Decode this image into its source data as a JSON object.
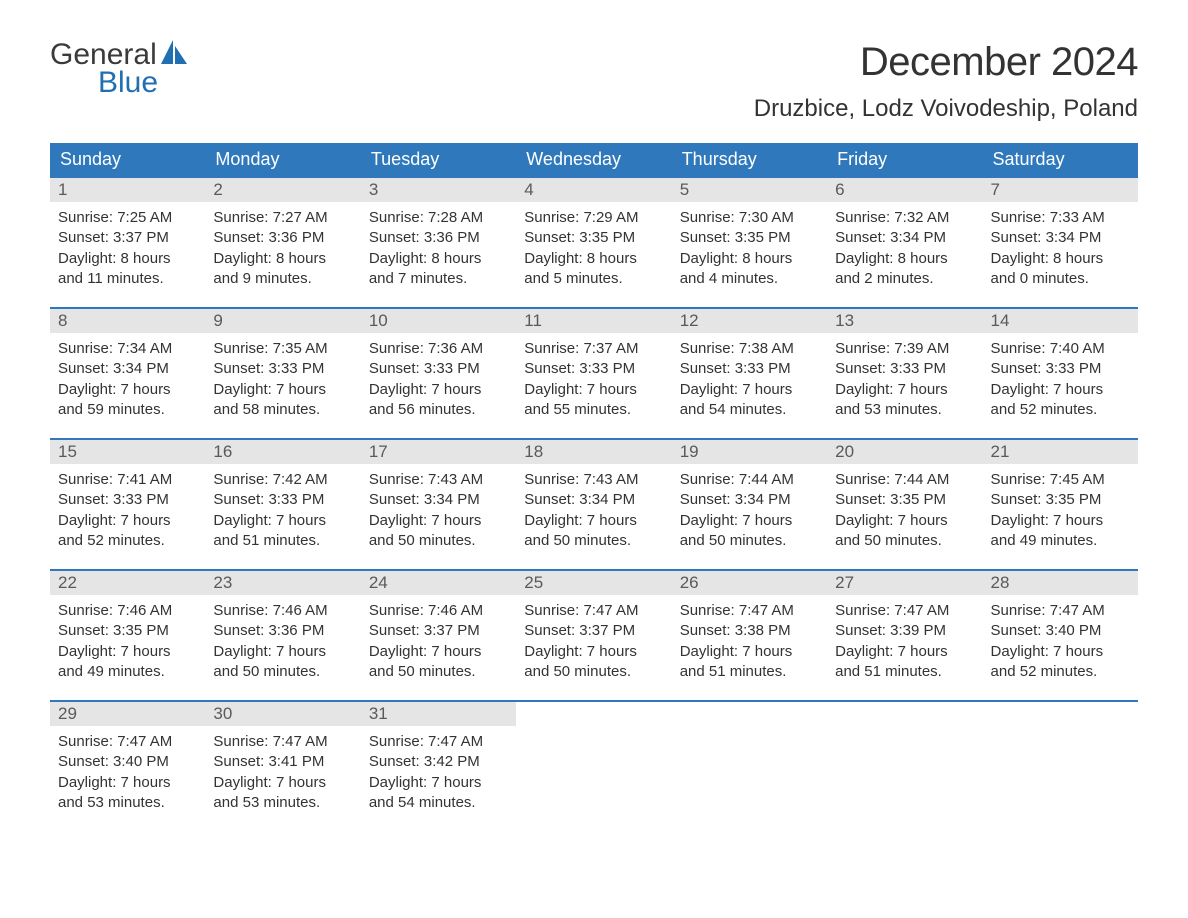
{
  "logo": {
    "text_top": "General",
    "text_bottom": "Blue",
    "icon_color": "#1f6fb2",
    "text_top_color": "#3a3a3a",
    "text_bottom_color": "#1f6fb2"
  },
  "title": "December 2024",
  "location": "Druzbice, Lodz Voivodeship, Poland",
  "colors": {
    "header_bg": "#2f78bc",
    "header_text": "#ffffff",
    "day_number_bg": "#e5e5e5",
    "day_number_text": "#5a5a5a",
    "border": "#2f78bc",
    "body_text": "#333333",
    "background": "#ffffff"
  },
  "typography": {
    "title_fontsize": 40,
    "location_fontsize": 24,
    "weekday_fontsize": 18,
    "daynum_fontsize": 17,
    "content_fontsize": 15,
    "font_family": "Arial"
  },
  "weekdays": [
    "Sunday",
    "Monday",
    "Tuesday",
    "Wednesday",
    "Thursday",
    "Friday",
    "Saturday"
  ],
  "weeks": [
    [
      {
        "day": "1",
        "sunrise": "Sunrise: 7:25 AM",
        "sunset": "Sunset: 3:37 PM",
        "daylight1": "Daylight: 8 hours",
        "daylight2": "and 11 minutes."
      },
      {
        "day": "2",
        "sunrise": "Sunrise: 7:27 AM",
        "sunset": "Sunset: 3:36 PM",
        "daylight1": "Daylight: 8 hours",
        "daylight2": "and 9 minutes."
      },
      {
        "day": "3",
        "sunrise": "Sunrise: 7:28 AM",
        "sunset": "Sunset: 3:36 PM",
        "daylight1": "Daylight: 8 hours",
        "daylight2": "and 7 minutes."
      },
      {
        "day": "4",
        "sunrise": "Sunrise: 7:29 AM",
        "sunset": "Sunset: 3:35 PM",
        "daylight1": "Daylight: 8 hours",
        "daylight2": "and 5 minutes."
      },
      {
        "day": "5",
        "sunrise": "Sunrise: 7:30 AM",
        "sunset": "Sunset: 3:35 PM",
        "daylight1": "Daylight: 8 hours",
        "daylight2": "and 4 minutes."
      },
      {
        "day": "6",
        "sunrise": "Sunrise: 7:32 AM",
        "sunset": "Sunset: 3:34 PM",
        "daylight1": "Daylight: 8 hours",
        "daylight2": "and 2 minutes."
      },
      {
        "day": "7",
        "sunrise": "Sunrise: 7:33 AM",
        "sunset": "Sunset: 3:34 PM",
        "daylight1": "Daylight: 8 hours",
        "daylight2": "and 0 minutes."
      }
    ],
    [
      {
        "day": "8",
        "sunrise": "Sunrise: 7:34 AM",
        "sunset": "Sunset: 3:34 PM",
        "daylight1": "Daylight: 7 hours",
        "daylight2": "and 59 minutes."
      },
      {
        "day": "9",
        "sunrise": "Sunrise: 7:35 AM",
        "sunset": "Sunset: 3:33 PM",
        "daylight1": "Daylight: 7 hours",
        "daylight2": "and 58 minutes."
      },
      {
        "day": "10",
        "sunrise": "Sunrise: 7:36 AM",
        "sunset": "Sunset: 3:33 PM",
        "daylight1": "Daylight: 7 hours",
        "daylight2": "and 56 minutes."
      },
      {
        "day": "11",
        "sunrise": "Sunrise: 7:37 AM",
        "sunset": "Sunset: 3:33 PM",
        "daylight1": "Daylight: 7 hours",
        "daylight2": "and 55 minutes."
      },
      {
        "day": "12",
        "sunrise": "Sunrise: 7:38 AM",
        "sunset": "Sunset: 3:33 PM",
        "daylight1": "Daylight: 7 hours",
        "daylight2": "and 54 minutes."
      },
      {
        "day": "13",
        "sunrise": "Sunrise: 7:39 AM",
        "sunset": "Sunset: 3:33 PM",
        "daylight1": "Daylight: 7 hours",
        "daylight2": "and 53 minutes."
      },
      {
        "day": "14",
        "sunrise": "Sunrise: 7:40 AM",
        "sunset": "Sunset: 3:33 PM",
        "daylight1": "Daylight: 7 hours",
        "daylight2": "and 52 minutes."
      }
    ],
    [
      {
        "day": "15",
        "sunrise": "Sunrise: 7:41 AM",
        "sunset": "Sunset: 3:33 PM",
        "daylight1": "Daylight: 7 hours",
        "daylight2": "and 52 minutes."
      },
      {
        "day": "16",
        "sunrise": "Sunrise: 7:42 AM",
        "sunset": "Sunset: 3:33 PM",
        "daylight1": "Daylight: 7 hours",
        "daylight2": "and 51 minutes."
      },
      {
        "day": "17",
        "sunrise": "Sunrise: 7:43 AM",
        "sunset": "Sunset: 3:34 PM",
        "daylight1": "Daylight: 7 hours",
        "daylight2": "and 50 minutes."
      },
      {
        "day": "18",
        "sunrise": "Sunrise: 7:43 AM",
        "sunset": "Sunset: 3:34 PM",
        "daylight1": "Daylight: 7 hours",
        "daylight2": "and 50 minutes."
      },
      {
        "day": "19",
        "sunrise": "Sunrise: 7:44 AM",
        "sunset": "Sunset: 3:34 PM",
        "daylight1": "Daylight: 7 hours",
        "daylight2": "and 50 minutes."
      },
      {
        "day": "20",
        "sunrise": "Sunrise: 7:44 AM",
        "sunset": "Sunset: 3:35 PM",
        "daylight1": "Daylight: 7 hours",
        "daylight2": "and 50 minutes."
      },
      {
        "day": "21",
        "sunrise": "Sunrise: 7:45 AM",
        "sunset": "Sunset: 3:35 PM",
        "daylight1": "Daylight: 7 hours",
        "daylight2": "and 49 minutes."
      }
    ],
    [
      {
        "day": "22",
        "sunrise": "Sunrise: 7:46 AM",
        "sunset": "Sunset: 3:35 PM",
        "daylight1": "Daylight: 7 hours",
        "daylight2": "and 49 minutes."
      },
      {
        "day": "23",
        "sunrise": "Sunrise: 7:46 AM",
        "sunset": "Sunset: 3:36 PM",
        "daylight1": "Daylight: 7 hours",
        "daylight2": "and 50 minutes."
      },
      {
        "day": "24",
        "sunrise": "Sunrise: 7:46 AM",
        "sunset": "Sunset: 3:37 PM",
        "daylight1": "Daylight: 7 hours",
        "daylight2": "and 50 minutes."
      },
      {
        "day": "25",
        "sunrise": "Sunrise: 7:47 AM",
        "sunset": "Sunset: 3:37 PM",
        "daylight1": "Daylight: 7 hours",
        "daylight2": "and 50 minutes."
      },
      {
        "day": "26",
        "sunrise": "Sunrise: 7:47 AM",
        "sunset": "Sunset: 3:38 PM",
        "daylight1": "Daylight: 7 hours",
        "daylight2": "and 51 minutes."
      },
      {
        "day": "27",
        "sunrise": "Sunrise: 7:47 AM",
        "sunset": "Sunset: 3:39 PM",
        "daylight1": "Daylight: 7 hours",
        "daylight2": "and 51 minutes."
      },
      {
        "day": "28",
        "sunrise": "Sunrise: 7:47 AM",
        "sunset": "Sunset: 3:40 PM",
        "daylight1": "Daylight: 7 hours",
        "daylight2": "and 52 minutes."
      }
    ],
    [
      {
        "day": "29",
        "sunrise": "Sunrise: 7:47 AM",
        "sunset": "Sunset: 3:40 PM",
        "daylight1": "Daylight: 7 hours",
        "daylight2": "and 53 minutes."
      },
      {
        "day": "30",
        "sunrise": "Sunrise: 7:47 AM",
        "sunset": "Sunset: 3:41 PM",
        "daylight1": "Daylight: 7 hours",
        "daylight2": "and 53 minutes."
      },
      {
        "day": "31",
        "sunrise": "Sunrise: 7:47 AM",
        "sunset": "Sunset: 3:42 PM",
        "daylight1": "Daylight: 7 hours",
        "daylight2": "and 54 minutes."
      },
      null,
      null,
      null,
      null
    ]
  ]
}
